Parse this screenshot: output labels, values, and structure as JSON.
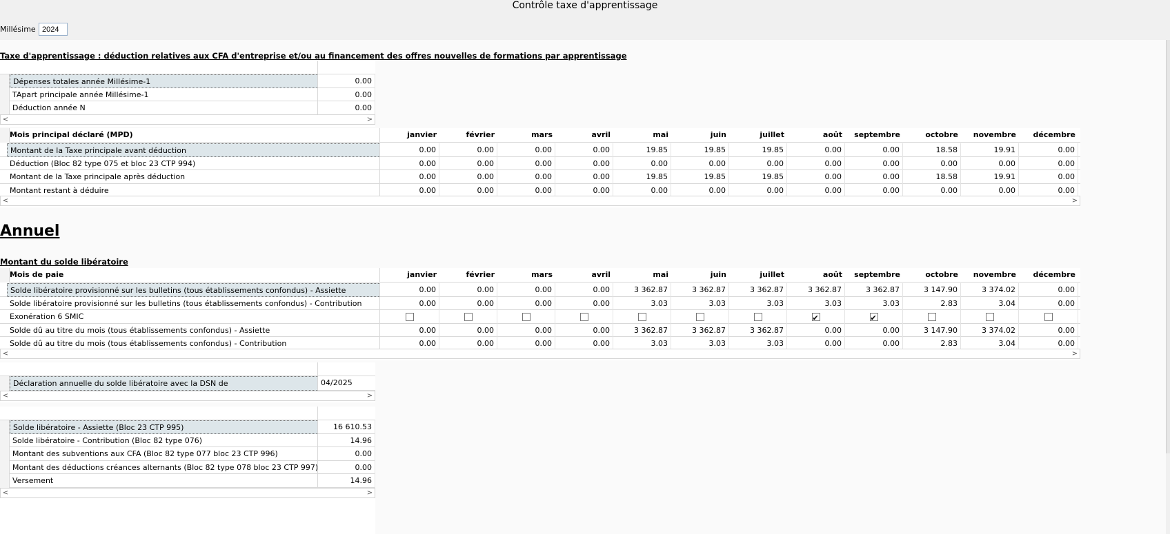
{
  "title": "Contrôle taxe d'apprentissage",
  "millesime": {
    "label": "Millésime :",
    "value": "2024"
  },
  "section1_title": "Taxe d'apprentissage : déduction relatives aux CFA d'entreprise et/ou au financement des offres nouvelles de formations par apprentissage",
  "summary1": [
    {
      "label": "Dépenses totales année Millésime-1",
      "value": "0.00"
    },
    {
      "label": "TApart principale année Millésime-1",
      "value": "0.00"
    },
    {
      "label": "Déduction année N",
      "value": "0.00"
    }
  ],
  "months": [
    "janvier",
    "février",
    "mars",
    "avril",
    "mai",
    "juin",
    "juillet",
    "août",
    "septembre",
    "octobre",
    "novembre",
    "décembre"
  ],
  "table1": {
    "header": "Mois principal déclaré (MPD)",
    "rows": [
      {
        "label": "Montant de la Taxe principale avant déduction",
        "values": [
          "0.00",
          "0.00",
          "0.00",
          "0.00",
          "19.85",
          "19.85",
          "19.85",
          "0.00",
          "0.00",
          "18.58",
          "19.91",
          "0.00"
        ]
      },
      {
        "label": "Déduction (Bloc 82 type 075 et bloc 23 CTP 994)",
        "values": [
          "0.00",
          "0.00",
          "0.00",
          "0.00",
          "0.00",
          "0.00",
          "0.00",
          "0.00",
          "0.00",
          "0.00",
          "0.00",
          "0.00"
        ]
      },
      {
        "label": "Montant de la Taxe principale après déduction",
        "values": [
          "0.00",
          "0.00",
          "0.00",
          "0.00",
          "19.85",
          "19.85",
          "19.85",
          "0.00",
          "0.00",
          "18.58",
          "19.91",
          "0.00"
        ]
      },
      {
        "label": "Montant restant à déduire",
        "values": [
          "0.00",
          "0.00",
          "0.00",
          "0.00",
          "0.00",
          "0.00",
          "0.00",
          "0.00",
          "0.00",
          "0.00",
          "0.00",
          "0.00"
        ]
      }
    ]
  },
  "annuel_title": "Annuel",
  "section2_title": "Montant du solde libératoire",
  "table2": {
    "header": "Mois de paie",
    "rows": [
      {
        "label": "Solde libératoire provisionné sur les bulletins (tous établissements confondus) - Assiette",
        "values": [
          "0.00",
          "0.00",
          "0.00",
          "0.00",
          "3 362.87",
          "3 362.87",
          "3 362.87",
          "3 362.87",
          "3 362.87",
          "3 147.90",
          "3 374.02",
          "0.00"
        ]
      },
      {
        "label": "Solde libératoire provisionné sur les bulletins (tous établissements confondus) - Contribution",
        "values": [
          "0.00",
          "0.00",
          "0.00",
          "0.00",
          "3.03",
          "3.03",
          "3.03",
          "3.03",
          "3.03",
          "2.83",
          "3.04",
          "0.00"
        ]
      },
      {
        "label": "Exonération 6 SMIC",
        "checks": [
          false,
          false,
          false,
          false,
          false,
          false,
          false,
          true,
          true,
          false,
          false,
          false
        ]
      },
      {
        "label": "Solde dû au titre du mois (tous établissements confondus) - Assiette",
        "values": [
          "0.00",
          "0.00",
          "0.00",
          "0.00",
          "3 362.87",
          "3 362.87",
          "3 362.87",
          "0.00",
          "0.00",
          "3 147.90",
          "3 374.02",
          "0.00"
        ]
      },
      {
        "label": "Solde dû au titre du mois (tous établissements confondus) - Contribution",
        "values": [
          "0.00",
          "0.00",
          "0.00",
          "0.00",
          "3.03",
          "3.03",
          "3.03",
          "0.00",
          "0.00",
          "2.83",
          "3.04",
          "0.00"
        ]
      }
    ]
  },
  "declaration": {
    "label": "Déclaration annuelle du solde libératoire avec la DSN de",
    "value": "04/2025"
  },
  "summary2": [
    {
      "label": "Solde libératoire - Assiette (Bloc 23 CTP 995)",
      "value": "16 610.53"
    },
    {
      "label": "Solde libératoire - Contribution (Bloc 82 type 076)",
      "value": "14.96"
    },
    {
      "label": "Montant des subventions aux CFA (Bloc 82 type 077 bloc 23 CTP 996)",
      "value": "0.00"
    },
    {
      "label": "Montant des déductions créances alternants (Bloc 82 type 078 bloc 23 CTP 997)",
      "value": "0.00"
    },
    {
      "label": "Versement",
      "value": "14.96"
    }
  ],
  "icons": {
    "scroll_left": "chevron-left-icon",
    "scroll_right": "chevron-right-icon"
  }
}
